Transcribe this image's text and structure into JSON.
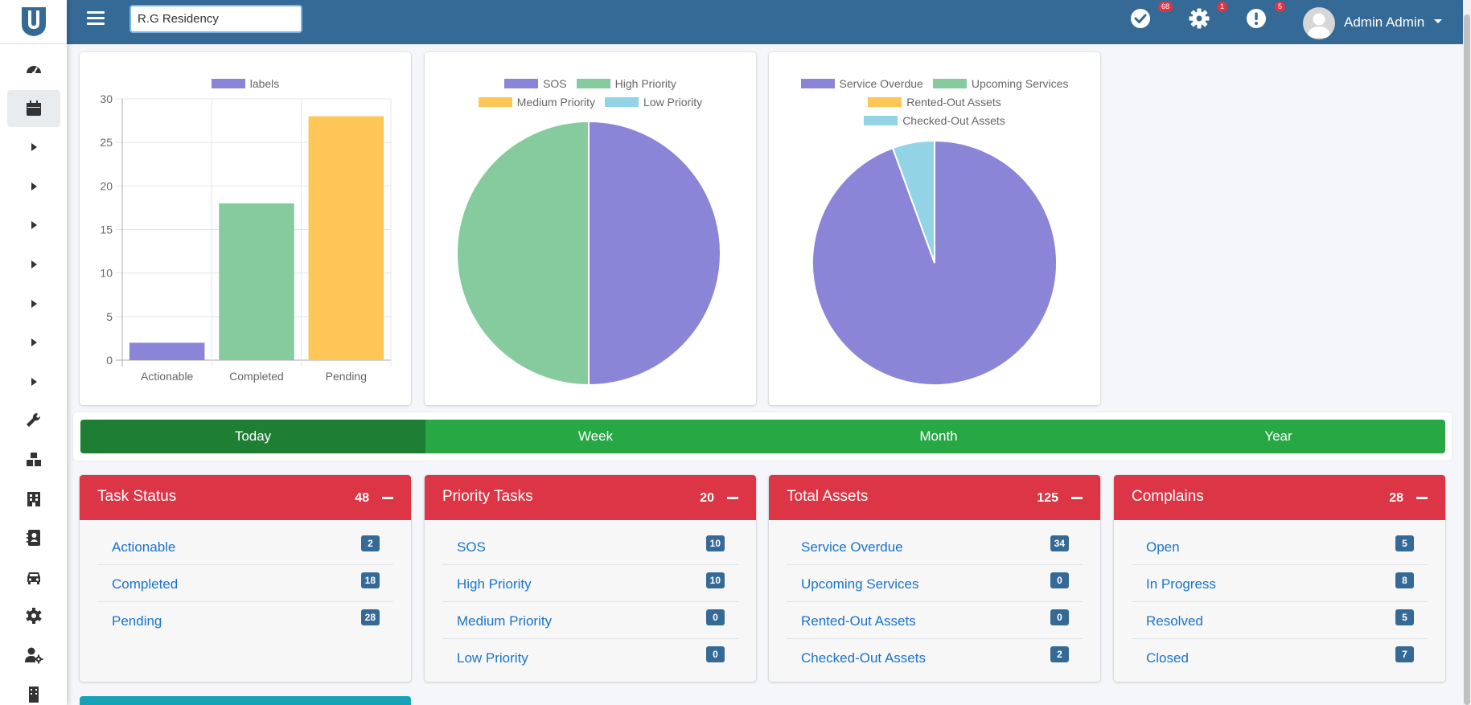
{
  "app": {
    "brand_color": "#356a96",
    "logo_icon": "u-shield-logo"
  },
  "topbar": {
    "menu_icon": "hamburger-icon",
    "search_value": "R.G Residency",
    "icons": [
      {
        "name": "tasks-check-icon",
        "badge": "68"
      },
      {
        "name": "gear-icon",
        "badge": "1"
      },
      {
        "name": "alert-icon",
        "badge": "5"
      }
    ],
    "user_name": "Admin Admin"
  },
  "sidebar": {
    "items": [
      {
        "icon": "dashboard-gauge-icon",
        "active": false
      },
      {
        "icon": "calendar-icon",
        "active": true
      },
      {
        "icon": "caret-right-icon"
      },
      {
        "icon": "caret-right-icon"
      },
      {
        "icon": "caret-right-icon"
      },
      {
        "icon": "caret-right-icon"
      },
      {
        "icon": "caret-right-icon"
      },
      {
        "icon": "caret-right-icon"
      },
      {
        "icon": "caret-right-icon"
      },
      {
        "icon": "wrench-icon"
      },
      {
        "icon": "boxes-icon"
      },
      {
        "icon": "building-icon"
      },
      {
        "icon": "address-book-icon"
      },
      {
        "icon": "car-icon"
      },
      {
        "icon": "cog-icon"
      },
      {
        "icon": "user-cog-icon"
      },
      {
        "icon": "building-small-icon"
      }
    ]
  },
  "chart_data": [
    {
      "type": "bar",
      "legend": [
        "labels"
      ],
      "categories": [
        "Actionable",
        "Completed",
        "Pending"
      ],
      "values": [
        2,
        18,
        28
      ],
      "colors": [
        "#8b85d8",
        "#86cb9e",
        "#fec656"
      ],
      "ylim": [
        0,
        30
      ],
      "yticks": [
        0,
        5,
        10,
        15,
        20,
        25,
        30
      ]
    },
    {
      "type": "pie",
      "labels": [
        "SOS",
        "High Priority",
        "Medium Priority",
        "Low Priority"
      ],
      "values": [
        10,
        10,
        0,
        0
      ],
      "colors": [
        "#8b85d8",
        "#86cb9e",
        "#fec656",
        "#92d3e5"
      ]
    },
    {
      "type": "pie",
      "labels": [
        "Service Overdue",
        "Upcoming Services",
        "Rented-Out Assets",
        "Checked-Out Assets"
      ],
      "values": [
        34,
        0,
        0,
        2
      ],
      "colors": [
        "#8b85d8",
        "#86cb9e",
        "#fec656",
        "#92d3e5"
      ]
    }
  ],
  "tabs": [
    {
      "label": "Today",
      "active": true
    },
    {
      "label": "Week",
      "active": false
    },
    {
      "label": "Month",
      "active": false
    },
    {
      "label": "Year",
      "active": false
    }
  ],
  "stats": [
    {
      "title": "Task Status",
      "total": "48",
      "rows": [
        {
          "label": "Actionable",
          "count": "2"
        },
        {
          "label": "Completed",
          "count": "18"
        },
        {
          "label": "Pending",
          "count": "28"
        }
      ]
    },
    {
      "title": "Priority Tasks",
      "total": "20",
      "rows": [
        {
          "label": "SOS",
          "count": "10"
        },
        {
          "label": "High Priority",
          "count": "10"
        },
        {
          "label": "Medium Priority",
          "count": "0"
        },
        {
          "label": "Low Priority",
          "count": "0"
        }
      ]
    },
    {
      "title": "Total Assets",
      "total": "125",
      "rows": [
        {
          "label": "Service Overdue",
          "count": "34"
        },
        {
          "label": "Upcoming Services",
          "count": "0"
        },
        {
          "label": "Rented-Out Assets",
          "count": "0"
        },
        {
          "label": "Checked-Out Assets",
          "count": "2"
        }
      ]
    },
    {
      "title": "Complains",
      "total": "28",
      "rows": [
        {
          "label": "Open",
          "count": "5"
        },
        {
          "label": "In Progress",
          "count": "8"
        },
        {
          "label": "Resolved",
          "count": "5"
        },
        {
          "label": "Closed",
          "count": "7"
        }
      ]
    }
  ],
  "colors": {
    "stat_header": "#dc3545",
    "tab_bar": "#28a745",
    "tab_active": "#1e7e34",
    "badge": "#356a96",
    "link": "#1a73c8"
  }
}
